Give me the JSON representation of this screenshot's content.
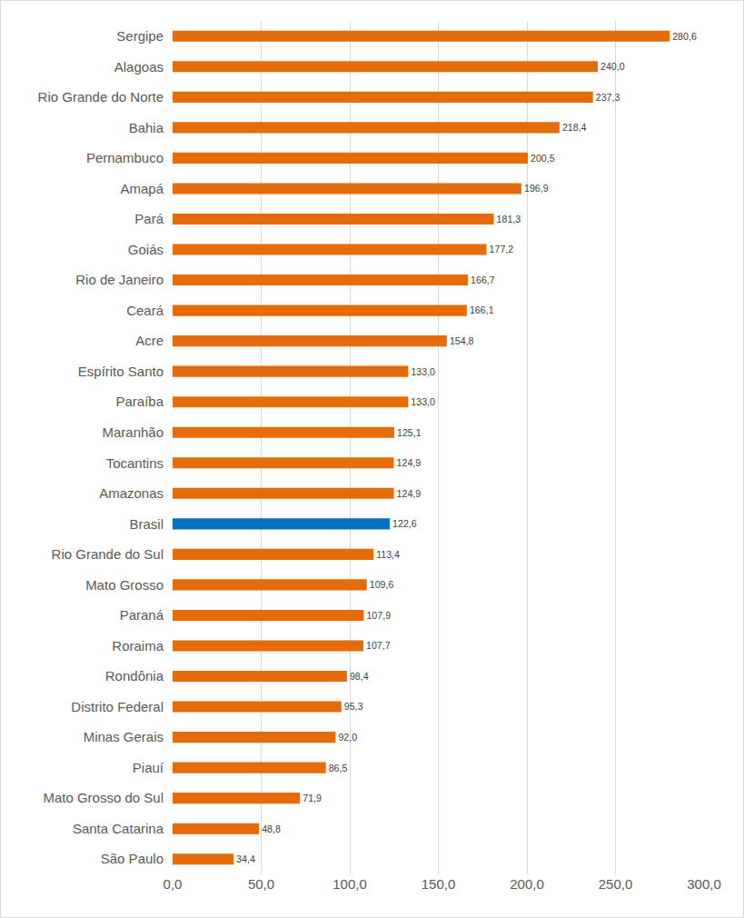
{
  "chart_data": {
    "type": "bar",
    "orientation": "horizontal",
    "categories": [
      "Sergipe",
      "Alagoas",
      "Rio Grande do Norte",
      "Bahia",
      "Pernambuco",
      "Amapá",
      "Pará",
      "Goiás",
      "Rio de Janeiro",
      "Ceará",
      "Acre",
      "Espírito Santo",
      "Paraíba",
      "Maranhão",
      "Tocantins",
      "Amazonas",
      "Brasil",
      "Rio Grande do Sul",
      "Mato Grosso",
      "Paraná",
      "Roraima",
      "Rondônia",
      "Distrito Federal",
      "Minas Gerais",
      "Piauí",
      "Mato Grosso do Sul",
      "Santa Catarina",
      "São Paulo"
    ],
    "values": [
      280.6,
      240.0,
      237.3,
      218.4,
      200.5,
      196.9,
      181.3,
      177.2,
      166.7,
      166.1,
      154.8,
      133.0,
      133.0,
      125.1,
      124.9,
      124.9,
      122.6,
      113.4,
      109.6,
      107.9,
      107.7,
      98.4,
      95.3,
      92.0,
      86.5,
      71.9,
      48.8,
      34.4
    ],
    "value_labels": [
      "280,6",
      "240,0",
      "237,3",
      "218,4",
      "200,5",
      "196,9",
      "181,3",
      "177,2",
      "166,7",
      "166,1",
      "154,8",
      "133,0",
      "133,0",
      "125,1",
      "124,9",
      "124,9",
      "122,6",
      "113,4",
      "109,6",
      "107,9",
      "107,7",
      "98,4",
      "95,3",
      "92,0",
      "86,5",
      "71,9",
      "48,8",
      "34,4"
    ],
    "colors": [
      "#e46c0a",
      "#e46c0a",
      "#e46c0a",
      "#e46c0a",
      "#e46c0a",
      "#e46c0a",
      "#e46c0a",
      "#e46c0a",
      "#e46c0a",
      "#e46c0a",
      "#e46c0a",
      "#e46c0a",
      "#e46c0a",
      "#e46c0a",
      "#e46c0a",
      "#e46c0a",
      "#0070c0",
      "#e46c0a",
      "#e46c0a",
      "#e46c0a",
      "#e46c0a",
      "#e46c0a",
      "#e46c0a",
      "#e46c0a",
      "#e46c0a",
      "#e46c0a",
      "#e46c0a",
      "#e46c0a"
    ],
    "xlim": [
      0,
      300
    ],
    "xticks": [
      {
        "value": 0,
        "label": "0,0"
      },
      {
        "value": 50,
        "label": "50,0"
      },
      {
        "value": 100,
        "label": "100,0"
      },
      {
        "value": 150,
        "label": "150,0"
      },
      {
        "value": 200,
        "label": "200,0"
      },
      {
        "value": 250,
        "label": "250,0"
      },
      {
        "value": 300,
        "label": "300,0"
      }
    ],
    "grid": true,
    "data_labels": true
  }
}
